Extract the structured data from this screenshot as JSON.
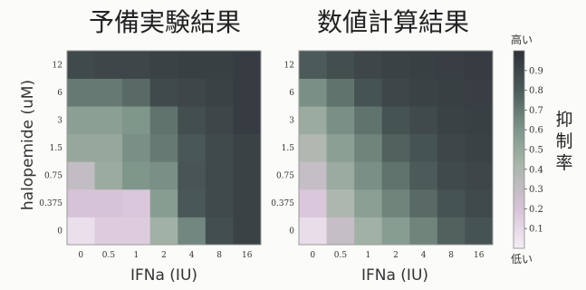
{
  "chart_data": [
    {
      "type": "heatmap",
      "title": "予備実験結果",
      "xlabel": "IFNa (IU)",
      "ylabel": "halopemide (uM)",
      "x": [
        "0",
        "0.5",
        "1",
        "2",
        "4",
        "8",
        "16"
      ],
      "y": [
        "0",
        "0.375",
        "0.75",
        "1.5",
        "3",
        "6",
        "12"
      ],
      "values": [
        [
          0.07,
          0.16,
          0.16,
          0.45,
          0.65,
          0.86,
          0.92
        ],
        [
          0.2,
          0.2,
          0.18,
          0.56,
          0.82,
          0.88,
          0.92
        ],
        [
          0.3,
          0.48,
          0.6,
          0.62,
          0.83,
          0.88,
          0.92
        ],
        [
          0.5,
          0.5,
          0.62,
          0.7,
          0.82,
          0.88,
          0.92
        ],
        [
          0.55,
          0.55,
          0.6,
          0.72,
          0.86,
          0.9,
          0.95
        ],
        [
          0.7,
          0.7,
          0.75,
          0.88,
          0.9,
          0.92,
          0.95
        ],
        [
          0.88,
          0.9,
          0.9,
          0.92,
          0.93,
          0.93,
          0.95
        ]
      ]
    },
    {
      "type": "heatmap",
      "title": "数値計算結果",
      "xlabel": "IFNa (IU)",
      "ylabel": "",
      "x": [
        "0",
        "0.5",
        "1",
        "2",
        "4",
        "8",
        "16"
      ],
      "y": [
        "0",
        "0.375",
        "0.75",
        "1.5",
        "3",
        "6",
        "12"
      ],
      "values": [
        [
          0.08,
          0.28,
          0.45,
          0.56,
          0.66,
          0.78,
          0.84
        ],
        [
          0.18,
          0.4,
          0.55,
          0.66,
          0.75,
          0.84,
          0.88
        ],
        [
          0.28,
          0.48,
          0.62,
          0.72,
          0.8,
          0.88,
          0.9
        ],
        [
          0.38,
          0.55,
          0.66,
          0.78,
          0.84,
          0.9,
          0.92
        ],
        [
          0.48,
          0.62,
          0.72,
          0.84,
          0.88,
          0.92,
          0.93
        ],
        [
          0.62,
          0.72,
          0.84,
          0.9,
          0.92,
          0.93,
          0.94
        ],
        [
          0.8,
          0.86,
          0.9,
          0.92,
          0.93,
          0.94,
          0.95
        ]
      ]
    }
  ],
  "colorbar": {
    "label": "抑制率",
    "high_label": "高い",
    "low_label": "低い",
    "ticks": [
      "0.1",
      "0.2",
      "0.3",
      "0.4",
      "0.5",
      "0.6",
      "0.7",
      "0.8",
      "0.9"
    ],
    "tick_values": [
      0.1,
      0.2,
      0.3,
      0.4,
      0.5,
      0.6,
      0.7,
      0.8,
      0.9
    ],
    "range": [
      0,
      1
    ],
    "colors": [
      "#f4eef5",
      "#d7c3d8",
      "#a9b6aa",
      "#7f968b",
      "#4c5b59",
      "#2f3139"
    ]
  }
}
